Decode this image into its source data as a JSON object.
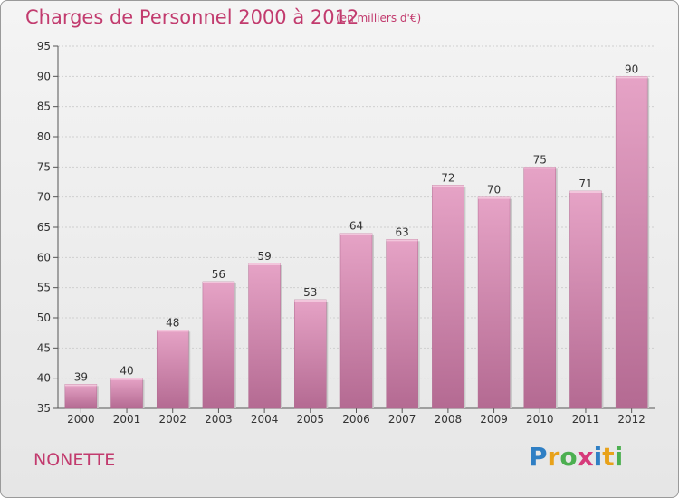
{
  "header": {
    "title": "Charges de Personnel 2000 à 2012",
    "subtitle": "(en milliers d'€)"
  },
  "footer": {
    "commune": "NONETTE",
    "logo_letters": [
      {
        "ch": "P",
        "color": "#2f7fc4"
      },
      {
        "ch": "r",
        "color": "#e8a21a"
      },
      {
        "ch": "o",
        "color": "#4caf50"
      },
      {
        "ch": "x",
        "color": "#d63a7a"
      },
      {
        "ch": "i",
        "color": "#2f7fc4"
      },
      {
        "ch": "t",
        "color": "#e8a21a"
      },
      {
        "ch": "i",
        "color": "#4caf50"
      }
    ]
  },
  "chart_data": {
    "type": "bar",
    "title": "Charges de Personnel 2000 à 2012",
    "subtitle": "(en milliers d'€)",
    "categories": [
      "2000",
      "2001",
      "2002",
      "2003",
      "2004",
      "2005",
      "2006",
      "2007",
      "2008",
      "2009",
      "2010",
      "2011",
      "2012"
    ],
    "values": [
      39,
      40,
      48,
      56,
      59,
      53,
      64,
      63,
      72,
      70,
      75,
      71,
      90
    ],
    "ylim": [
      35,
      95
    ],
    "yticks": [
      35,
      40,
      45,
      50,
      55,
      60,
      65,
      70,
      75,
      80,
      85,
      90,
      95
    ],
    "grid": true,
    "bar_color": "#d47aa8"
  }
}
